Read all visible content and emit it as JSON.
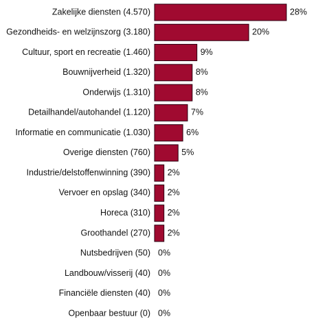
{
  "chart_data": {
    "type": "hbar",
    "categories": [
      "Zakelijke diensten (4.570)",
      "Gezondheids- en welzijnszorg (3.180)",
      "Cultuur, sport en recreatie (1.460)",
      "Bouwnijverheid (1.320)",
      "Onderwijs (1.310)",
      "Detailhandel/autohandel (1.120)",
      "Informatie en communicatie (1.030)",
      "Overige diensten (760)",
      "Industrie/delstoffenwinning (390)",
      "Vervoer en opslag (340)",
      "Horeca (310)",
      "Groothandel (270)",
      "Nutsbedrijven (50)",
      "Landbouw/visserij (40)",
      "Financiële diensten (40)",
      "Openbaar bestuur (0)"
    ],
    "values": [
      28,
      20,
      9,
      8,
      8,
      7,
      6,
      5,
      2,
      2,
      2,
      2,
      0,
      0,
      0,
      0
    ],
    "value_labels": [
      "28%",
      "20%",
      "9%",
      "8%",
      "8%",
      "7%",
      "6%",
      "5%",
      "2%",
      "2%",
      "2%",
      "2%",
      "0%",
      "0%",
      "0%",
      "0%"
    ],
    "color": "#a00a30"
  }
}
